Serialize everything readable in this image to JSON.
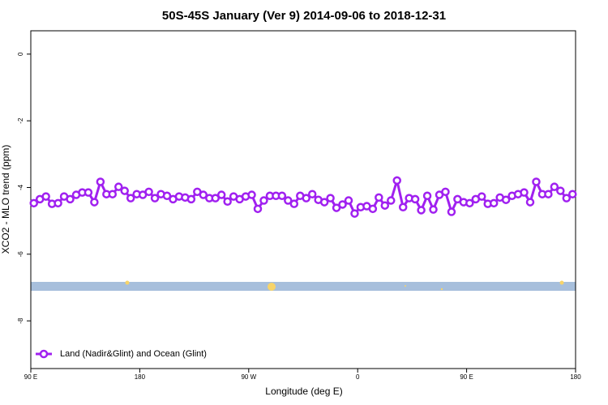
{
  "chart_data": {
    "type": "line",
    "title": "50S-45S January (Ver 9)   2014-09-06 to 2018-12-31",
    "x_label": "Longitude (deg E)",
    "y_label": "XCO2 - MLO trend (ppm)",
    "x": [
      92.5,
      97.5,
      102.5,
      107.5,
      112.5,
      117.5,
      122.5,
      127.5,
      132.5,
      137.5,
      142.5,
      147.5,
      152.5,
      157.5,
      162.5,
      167.5,
      172.5,
      177.5,
      182.5,
      187.5,
      192.5,
      197.5,
      202.5,
      207.5,
      212.5,
      217.5,
      222.5,
      227.5,
      232.5,
      237.5,
      242.5,
      247.5,
      252.5,
      257.5,
      262.5,
      267.5,
      272.5,
      277.5,
      282.5,
      287.5,
      292.5,
      297.5,
      302.5,
      307.5,
      312.5,
      317.5,
      322.5,
      327.5,
      332.5,
      337.5,
      342.5,
      347.5,
      352.5,
      357.5,
      362.5,
      367.5,
      372.5,
      377.5,
      382.5,
      387.5,
      392.5,
      397.5,
      402.5,
      407.5,
      412.5,
      417.5,
      422.5,
      427.5,
      432.5,
      437.5,
      442.5,
      447.5,
      452.5,
      457.5,
      462.5,
      467.5,
      472.5,
      477.5,
      482.5,
      487.5,
      492.5,
      497.5,
      502.5,
      507.5,
      512.5,
      517.5,
      522.5,
      527.5,
      532.5,
      537.5
    ],
    "series": [
      {
        "name": "Land (Nadir&Glint) and Ocean (Glint)",
        "color": "#a020f0",
        "values": [
          -4.47,
          -4.35,
          -4.27,
          -4.49,
          -4.47,
          -4.27,
          -4.35,
          -4.22,
          -4.15,
          -4.15,
          -4.44,
          -3.83,
          -4.2,
          -4.2,
          -3.98,
          -4.1,
          -4.32,
          -4.2,
          -4.22,
          -4.13,
          -4.32,
          -4.2,
          -4.25,
          -4.35,
          -4.27,
          -4.3,
          -4.35,
          -4.13,
          -4.22,
          -4.32,
          -4.32,
          -4.22,
          -4.42,
          -4.27,
          -4.35,
          -4.27,
          -4.22,
          -4.64,
          -4.39,
          -4.25,
          -4.25,
          -4.25,
          -4.39,
          -4.49,
          -4.25,
          -4.32,
          -4.2,
          -4.37,
          -4.44,
          -4.32,
          -4.61,
          -4.51,
          -4.39,
          -4.78,
          -4.59,
          -4.56,
          -4.64,
          -4.3,
          -4.54,
          -4.39,
          -3.79,
          -4.59,
          -4.32,
          -4.35,
          -4.68,
          -4.25,
          -4.66,
          -4.22,
          -4.13,
          -4.73,
          -4.35,
          -4.44,
          -4.47,
          -4.35,
          -4.27,
          -4.49,
          -4.47,
          -4.3,
          -4.37,
          -4.25,
          -4.2,
          -4.15,
          -4.44,
          -3.83,
          -4.2,
          -4.2,
          -3.98,
          -4.1,
          -4.32,
          -4.2
        ]
      }
    ],
    "xlim": [
      90,
      540
    ],
    "xticks": [
      {
        "value": 90,
        "label": "90 E"
      },
      180,
      {
        "value": 270,
        "label": "90 W"
      },
      {
        "value": 360,
        "label": "0"
      },
      {
        "value": 450,
        "label": "90 E"
      },
      {
        "value": 540,
        "label": "180"
      }
    ],
    "ylim": [
      -9.43,
      0.7
    ],
    "yticks": [
      0,
      -2,
      -4,
      -6,
      -8
    ],
    "grid": false,
    "legend": "bottom-left"
  }
}
